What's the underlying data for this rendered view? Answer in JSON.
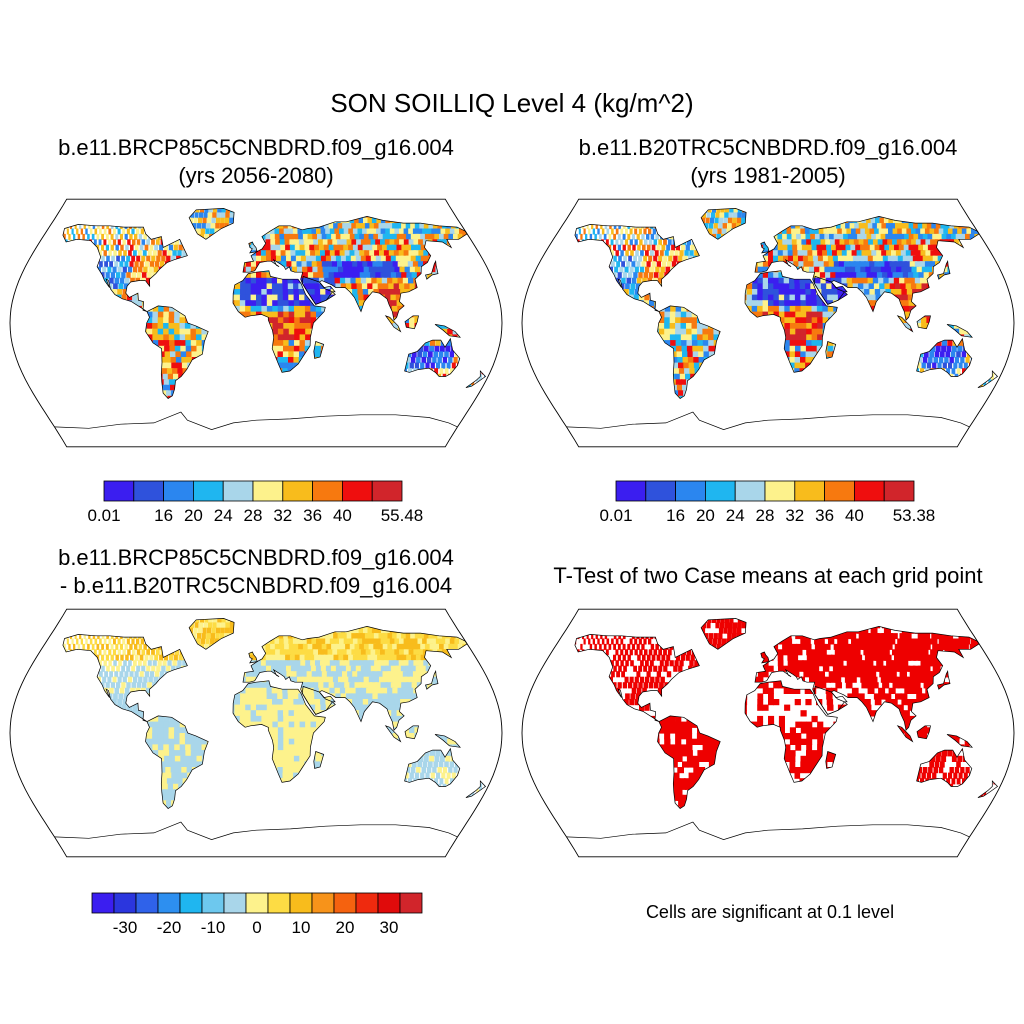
{
  "title": "SON SOILLIQ Level 4 (kg/m^2)",
  "panels": [
    {
      "line1": "b.e11.BRCP85C5CNBDRD.f09_g16.004",
      "line2": "(yrs 2056-2080)"
    },
    {
      "line1": "b.e11.B20TRC5CNBDRD.f09_g16.004",
      "line2": "(yrs 1981-2005)"
    },
    {
      "line1": "b.e11.BRCP85C5CNBDRD.f09_g16.004",
      "line2": "- b.e11.B20TRC5CNBDRD.f09_g16.004"
    },
    {
      "line1": "T-Test of two Case means at each grid point",
      "line2": ""
    }
  ],
  "significance_note": "Cells are significant at 0.1 level",
  "chart_data": [
    {
      "type": "heatmap",
      "panel": "top-left",
      "colorbar": {
        "colors": [
          "#3b1ef0",
          "#2f52dc",
          "#2b86ef",
          "#1fb6f0",
          "#a9d6ea",
          "#fdf28c",
          "#f8bc1c",
          "#f7790f",
          "#ef0e0e",
          "#d1252b"
        ],
        "tick_labels": [
          "0.01",
          "",
          "16",
          "20",
          "24",
          "28",
          "32",
          "36",
          "40",
          "",
          "55.48"
        ]
      }
    },
    {
      "type": "heatmap",
      "panel": "top-right",
      "colorbar": {
        "colors": [
          "#3b1ef0",
          "#2f52dc",
          "#2b86ef",
          "#1fb6f0",
          "#a9d6ea",
          "#fdf28c",
          "#f8bc1c",
          "#f7790f",
          "#ef0e0e",
          "#d1252b"
        ],
        "tick_labels": [
          "0.01",
          "",
          "16",
          "20",
          "24",
          "28",
          "32",
          "36",
          "40",
          "",
          "53.38"
        ]
      }
    },
    {
      "type": "heatmap",
      "panel": "bottom-left",
      "colorbar": {
        "colors": [
          "#3b1ef0",
          "#2b36de",
          "#2f62ea",
          "#2d8ff0",
          "#1fb6f0",
          "#6dc8ee",
          "#a9d6ea",
          "#fdf28c",
          "#fddc44",
          "#f8bc1c",
          "#f7931a",
          "#f5620f",
          "#ef2a0e",
          "#e00b0b",
          "#d1252b"
        ],
        "tick_labels": [
          "-30",
          "-20",
          "-10",
          "0",
          "10",
          "20",
          "30"
        ],
        "tick_values": [
          -30,
          -20,
          -10,
          0,
          10,
          20,
          30
        ],
        "range": [
          -37.5,
          37.5
        ]
      }
    },
    {
      "type": "heatmap",
      "panel": "bottom-right",
      "significant_color": "#ee0000"
    }
  ]
}
